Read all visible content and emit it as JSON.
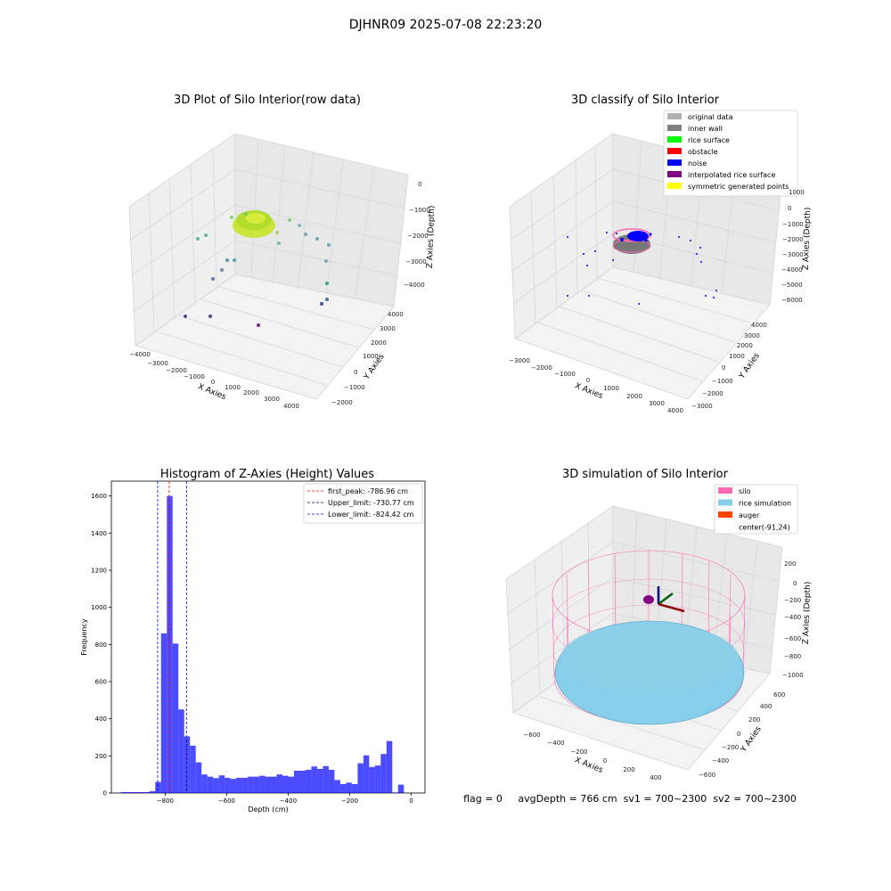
{
  "suptitle": "DJHNR09 2025-07-08 22:23:20",
  "panels": {
    "raw": {
      "title": "3D Plot of Silo Interior(row data)",
      "xlabel": "X Axies",
      "ylabel": "Y Axies",
      "zlabel": "Z Axies (Depth)",
      "xticks": [
        "−4000",
        "−3000",
        "−2000",
        "−1000",
        "0",
        "1000",
        "2000",
        "3000",
        "4000"
      ],
      "yticks": [
        "−2000",
        "−1000",
        "0",
        "1000",
        "2000",
        "3000",
        "4000"
      ],
      "zticks": [
        "0",
        "−1000",
        "−2000",
        "−3000",
        "−4000"
      ]
    },
    "classify": {
      "title": "3D classify of Silo Interior",
      "xlabel": "X Axies",
      "ylabel": "Y Axies",
      "zlabel": "Z Axies (Depth)",
      "xticks": [
        "−3000",
        "−2000",
        "−1000",
        "0",
        "1000",
        "2000",
        "3000",
        "4000"
      ],
      "yticks": [
        "−3000",
        "−2000",
        "−1000",
        "0",
        "1000",
        "2000",
        "3000",
        "4000"
      ],
      "zticks": [
        "1000",
        "0",
        "−1000",
        "−2000",
        "−3000",
        "−4000",
        "−5000",
        "−6000"
      ],
      "legend": [
        {
          "label": "original data",
          "color": "#b0b0b0"
        },
        {
          "label": "inner wall",
          "color": "#808080"
        },
        {
          "label": "rice surface",
          "color": "#00ff00"
        },
        {
          "label": "obstacle",
          "color": "#ff0000"
        },
        {
          "label": "noise",
          "color": "#0000ff"
        },
        {
          "label": "interpolated rice surface",
          "color": "#800080"
        },
        {
          "label": "symmetric generated points",
          "color": "#ffff00"
        }
      ]
    },
    "histogram": {
      "title": "Histogram of Z-Axies (Height) Values",
      "legend": [
        {
          "label": "first_peak: -786.96 cm",
          "color": "#ff0000"
        },
        {
          "label": "Upper_limit: -730.77 cm",
          "color": "#00008b"
        },
        {
          "label": "Lower_limit: -824.42 cm",
          "color": "#0000ff"
        }
      ]
    },
    "simulation": {
      "title": "3D simulation of Silo Interior",
      "xlabel": "X Axies",
      "ylabel": "Y Axies",
      "zlabel": "Z Axies (Depth)",
      "xticks": [
        "−600",
        "−400",
        "−200",
        "0",
        "200",
        "400"
      ],
      "yticks": [
        "−600",
        "−400",
        "−200",
        "0",
        "200",
        "400",
        "600"
      ],
      "zticks": [
        "200",
        "0",
        "−200",
        "−400",
        "−600",
        "−800",
        "−1000"
      ],
      "legend": [
        {
          "label": "silo",
          "color": "#ff69b4"
        },
        {
          "label": "rice simulation",
          "color": "#87ceeb"
        },
        {
          "label": "auger",
          "color": "#ff4500"
        },
        {
          "label": "center(-91,24)",
          "color": ""
        }
      ],
      "status": "flag = 0     avgDepth = 766 cm  sv1 = 700~2300  sv2 = 700~2300"
    }
  },
  "chart_data": {
    "type": "bar",
    "title": "Histogram of Z-Axies (Height) Values",
    "xlabel": "Depth (cm)",
    "ylabel": "Frequency",
    "xlim": [
      -975,
      45
    ],
    "ylim": [
      0,
      1680
    ],
    "xticks": [
      -800,
      -600,
      -400,
      -200,
      0
    ],
    "yticks": [
      0,
      200,
      400,
      600,
      800,
      1000,
      1200,
      1400,
      1600
    ],
    "bin_width": 18.8,
    "bin_start": -945,
    "values": [
      5,
      5,
      5,
      5,
      5,
      10,
      60,
      860,
      1600,
      805,
      450,
      305,
      255,
      165,
      100,
      88,
      80,
      95,
      82,
      76,
      82,
      82,
      88,
      88,
      93,
      88,
      88,
      100,
      93,
      88,
      120,
      120,
      125,
      143,
      130,
      145,
      125,
      70,
      48,
      56,
      48,
      160,
      203,
      140,
      148,
      210,
      280,
      3,
      45
    ],
    "color": "#0000ff",
    "vlines": [
      {
        "label": "first_peak: -786.96 cm",
        "x": -786.96,
        "color": "#ff0000"
      },
      {
        "label": "Upper_limit: -730.77 cm",
        "x": -730.77,
        "color": "#00008b"
      },
      {
        "label": "Lower_limit: -824.42 cm",
        "x": -824.42,
        "color": "#0000ff"
      }
    ],
    "grid": false,
    "legend_position": "top-right"
  }
}
